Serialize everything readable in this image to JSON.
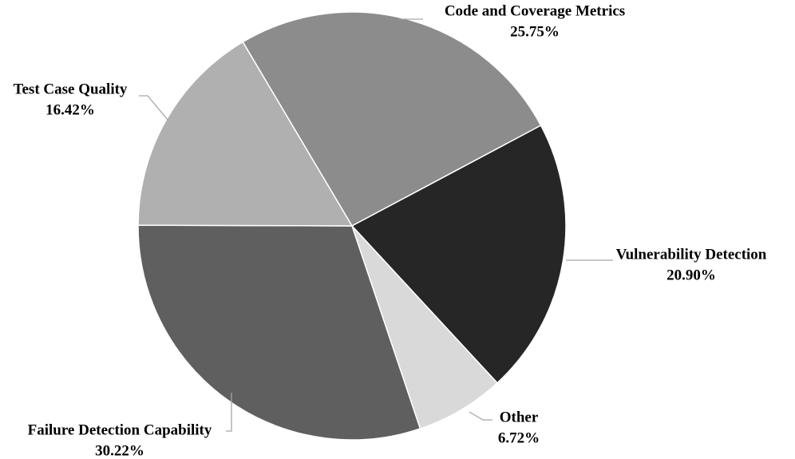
{
  "chart_data": {
    "type": "pie",
    "categories": [
      "Code and Coverage Metrics",
      "Vulnerability Detection",
      "Other",
      "Failure Detection Capability",
      "Test Case Quality"
    ],
    "values": [
      25.75,
      20.9,
      6.72,
      30.22,
      16.42
    ],
    "value_labels": [
      "25.75%",
      "20.90%",
      "6.72%",
      "30.22%",
      "16.42%"
    ],
    "colors": [
      "#8c8c8c",
      "#262626",
      "#d9d9d9",
      "#5f5f5f",
      "#b0b0b0"
    ]
  }
}
